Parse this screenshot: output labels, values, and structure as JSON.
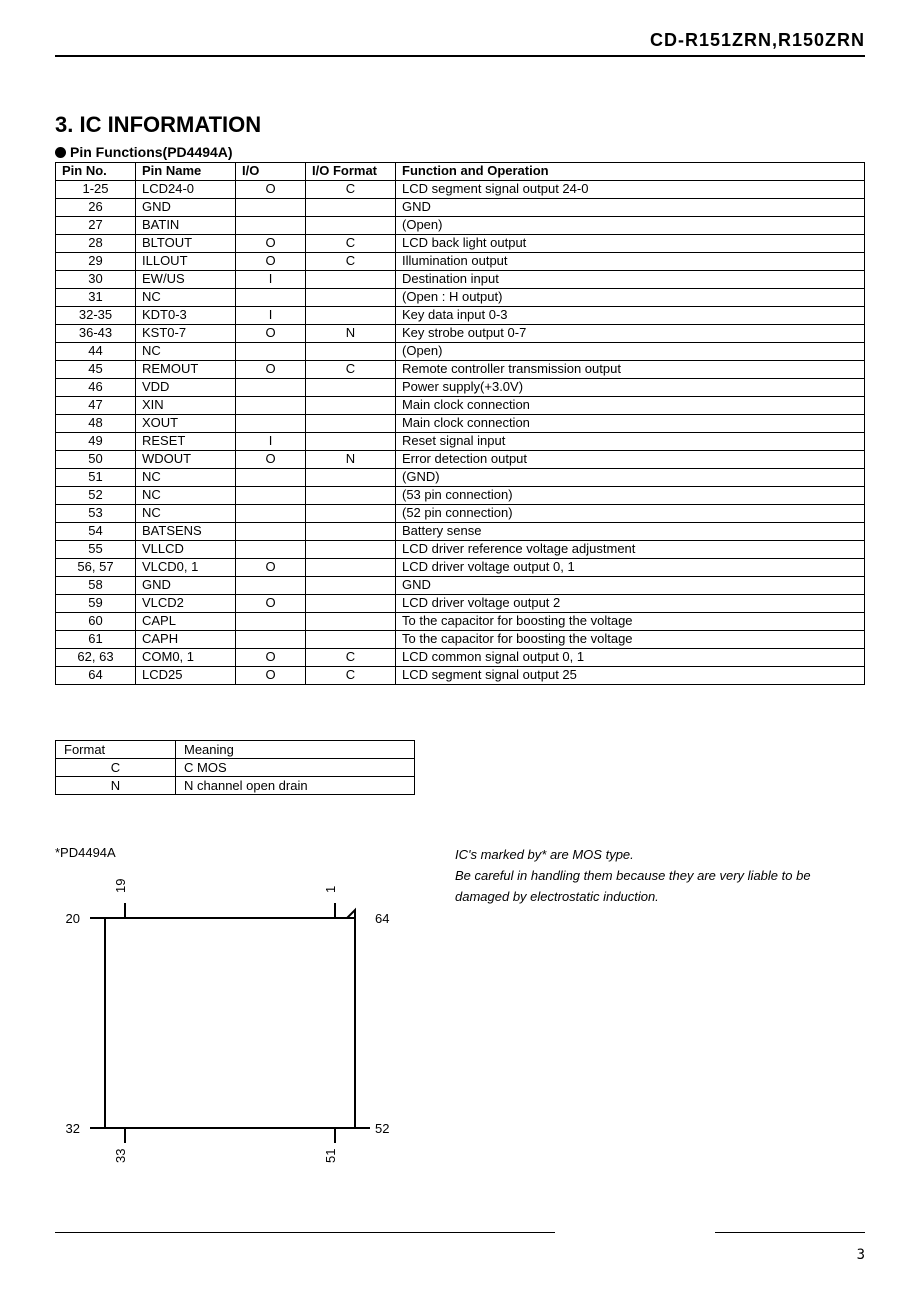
{
  "header": {
    "model": "CD-R151ZRN,R150ZRN"
  },
  "section": {
    "title": "3. IC INFORMATION",
    "subhead": "Pin Functions(PD4494A)"
  },
  "pin_table": {
    "columns": [
      "Pin No.",
      "Pin Name",
      "I/O",
      "I/O Format",
      "Function and Operation"
    ],
    "rows": [
      {
        "no": "1-25",
        "name": "LCD24-0",
        "io": "O",
        "fmt": "C",
        "fn": "LCD segment signal output 24-0"
      },
      {
        "no": "26",
        "name": "GND",
        "io": "",
        "fmt": "",
        "fn": "GND"
      },
      {
        "no": "27",
        "name": "BATIN",
        "overline": true,
        "io": "",
        "fmt": "",
        "fn": "(Open)"
      },
      {
        "no": "28",
        "name": "BLTOUT",
        "io": "O",
        "fmt": "C",
        "fn": "LCD back light output"
      },
      {
        "no": "29",
        "name": "ILLOUT",
        "io": "O",
        "fmt": "C",
        "fn": "Illumination output"
      },
      {
        "no": "30",
        "name": "EW/US",
        "name_html": "EW/<span class='overline'>US</span>",
        "io": "I",
        "fmt": "",
        "fn": "Destination input"
      },
      {
        "no": "31",
        "name": "NC",
        "io": "",
        "fmt": "",
        "fn": "(Open : H output)"
      },
      {
        "no": "32-35",
        "name": "KDT0-3",
        "name_html": "<span class='overline'>KDT0-3</span>",
        "io": "I",
        "fmt": "",
        "fn": "Key data input 0-3"
      },
      {
        "no": "36-43",
        "name": "KST0-7",
        "name_html": "<span class='overline'>KST0-7</span>",
        "io": "O",
        "fmt": "N",
        "fn": "Key strobe output 0-7"
      },
      {
        "no": "44",
        "name": "NC",
        "io": "",
        "fmt": "",
        "fn": "(Open)"
      },
      {
        "no": "45",
        "name": "REMOUT",
        "io": "O",
        "fmt": "C",
        "fn": "Remote controller transmission output"
      },
      {
        "no": "46",
        "name": "VDD",
        "io": "",
        "fmt": "",
        "fn": "Power supply(+3.0V)"
      },
      {
        "no": "47",
        "name": "XIN",
        "io": "",
        "fmt": "",
        "fn": "Main clock connection"
      },
      {
        "no": "48",
        "name": "XOUT",
        "io": "",
        "fmt": "",
        "fn": "Main clock connection"
      },
      {
        "no": "49",
        "name": "RESET",
        "name_html": "<span class='overline'>RESET</span>",
        "io": "I",
        "fmt": "",
        "fn": "Reset signal input"
      },
      {
        "no": "50",
        "name": "WDOUT",
        "name_html": "<span class='overline'>WDOUT</span>",
        "io": "O",
        "fmt": "N",
        "fn": "Error detection output"
      },
      {
        "no": "51",
        "name": "NC",
        "io": "",
        "fmt": "",
        "fn": "(GND)"
      },
      {
        "no": "52",
        "name": "NC",
        "io": "",
        "fmt": "",
        "fn": "(53 pin connection)"
      },
      {
        "no": "53",
        "name": "NC",
        "io": "",
        "fmt": "",
        "fn": "(52 pin connection)"
      },
      {
        "no": "54",
        "name": "BATSENS",
        "io": "",
        "fmt": "",
        "fn": "Battery sense"
      },
      {
        "no": "55",
        "name": "VLLCD",
        "io": "",
        "fmt": "",
        "fn": "LCD driver reference voltage adjustment"
      },
      {
        "no": "56, 57",
        "name": "VLCD0, 1",
        "io": "O",
        "fmt": "",
        "fn": "LCD driver voltage output 0, 1"
      },
      {
        "no": "58",
        "name": "GND",
        "io": "",
        "fmt": "",
        "fn": "GND"
      },
      {
        "no": "59",
        "name": "VLCD2",
        "io": "O",
        "fmt": "",
        "fn": "LCD driver voltage output 2"
      },
      {
        "no": "60",
        "name": "CAPL",
        "io": "",
        "fmt": "",
        "fn": "To the capacitor for boosting the voltage"
      },
      {
        "no": "61",
        "name": "CAPH",
        "io": "",
        "fmt": "",
        "fn": "To the capacitor for boosting the voltage"
      },
      {
        "no": "62, 63",
        "name": "COM0, 1",
        "io": "O",
        "fmt": "C",
        "fn": "LCD common signal output 0, 1"
      },
      {
        "no": "64",
        "name": "LCD25",
        "io": "O",
        "fmt": "C",
        "fn": "LCD segment signal output 25"
      }
    ]
  },
  "format_table": {
    "columns": [
      "Format",
      "Meaning"
    ],
    "rows": [
      {
        "f": "C",
        "m": "C MOS"
      },
      {
        "f": "N",
        "m": "N channel open drain"
      }
    ]
  },
  "chip": {
    "label": "*PD4494A",
    "pins": {
      "tl": "20",
      "tl_in": "19",
      "tr": "64",
      "tr_in": "1",
      "bl": "32",
      "bl_in": "33",
      "br": "52",
      "br_in": "51"
    }
  },
  "note": {
    "l1": "IC's marked by* are MOS type.",
    "l2": "Be careful in handling them because they are very liable to be damaged by electrostatic induction."
  },
  "page": "3"
}
